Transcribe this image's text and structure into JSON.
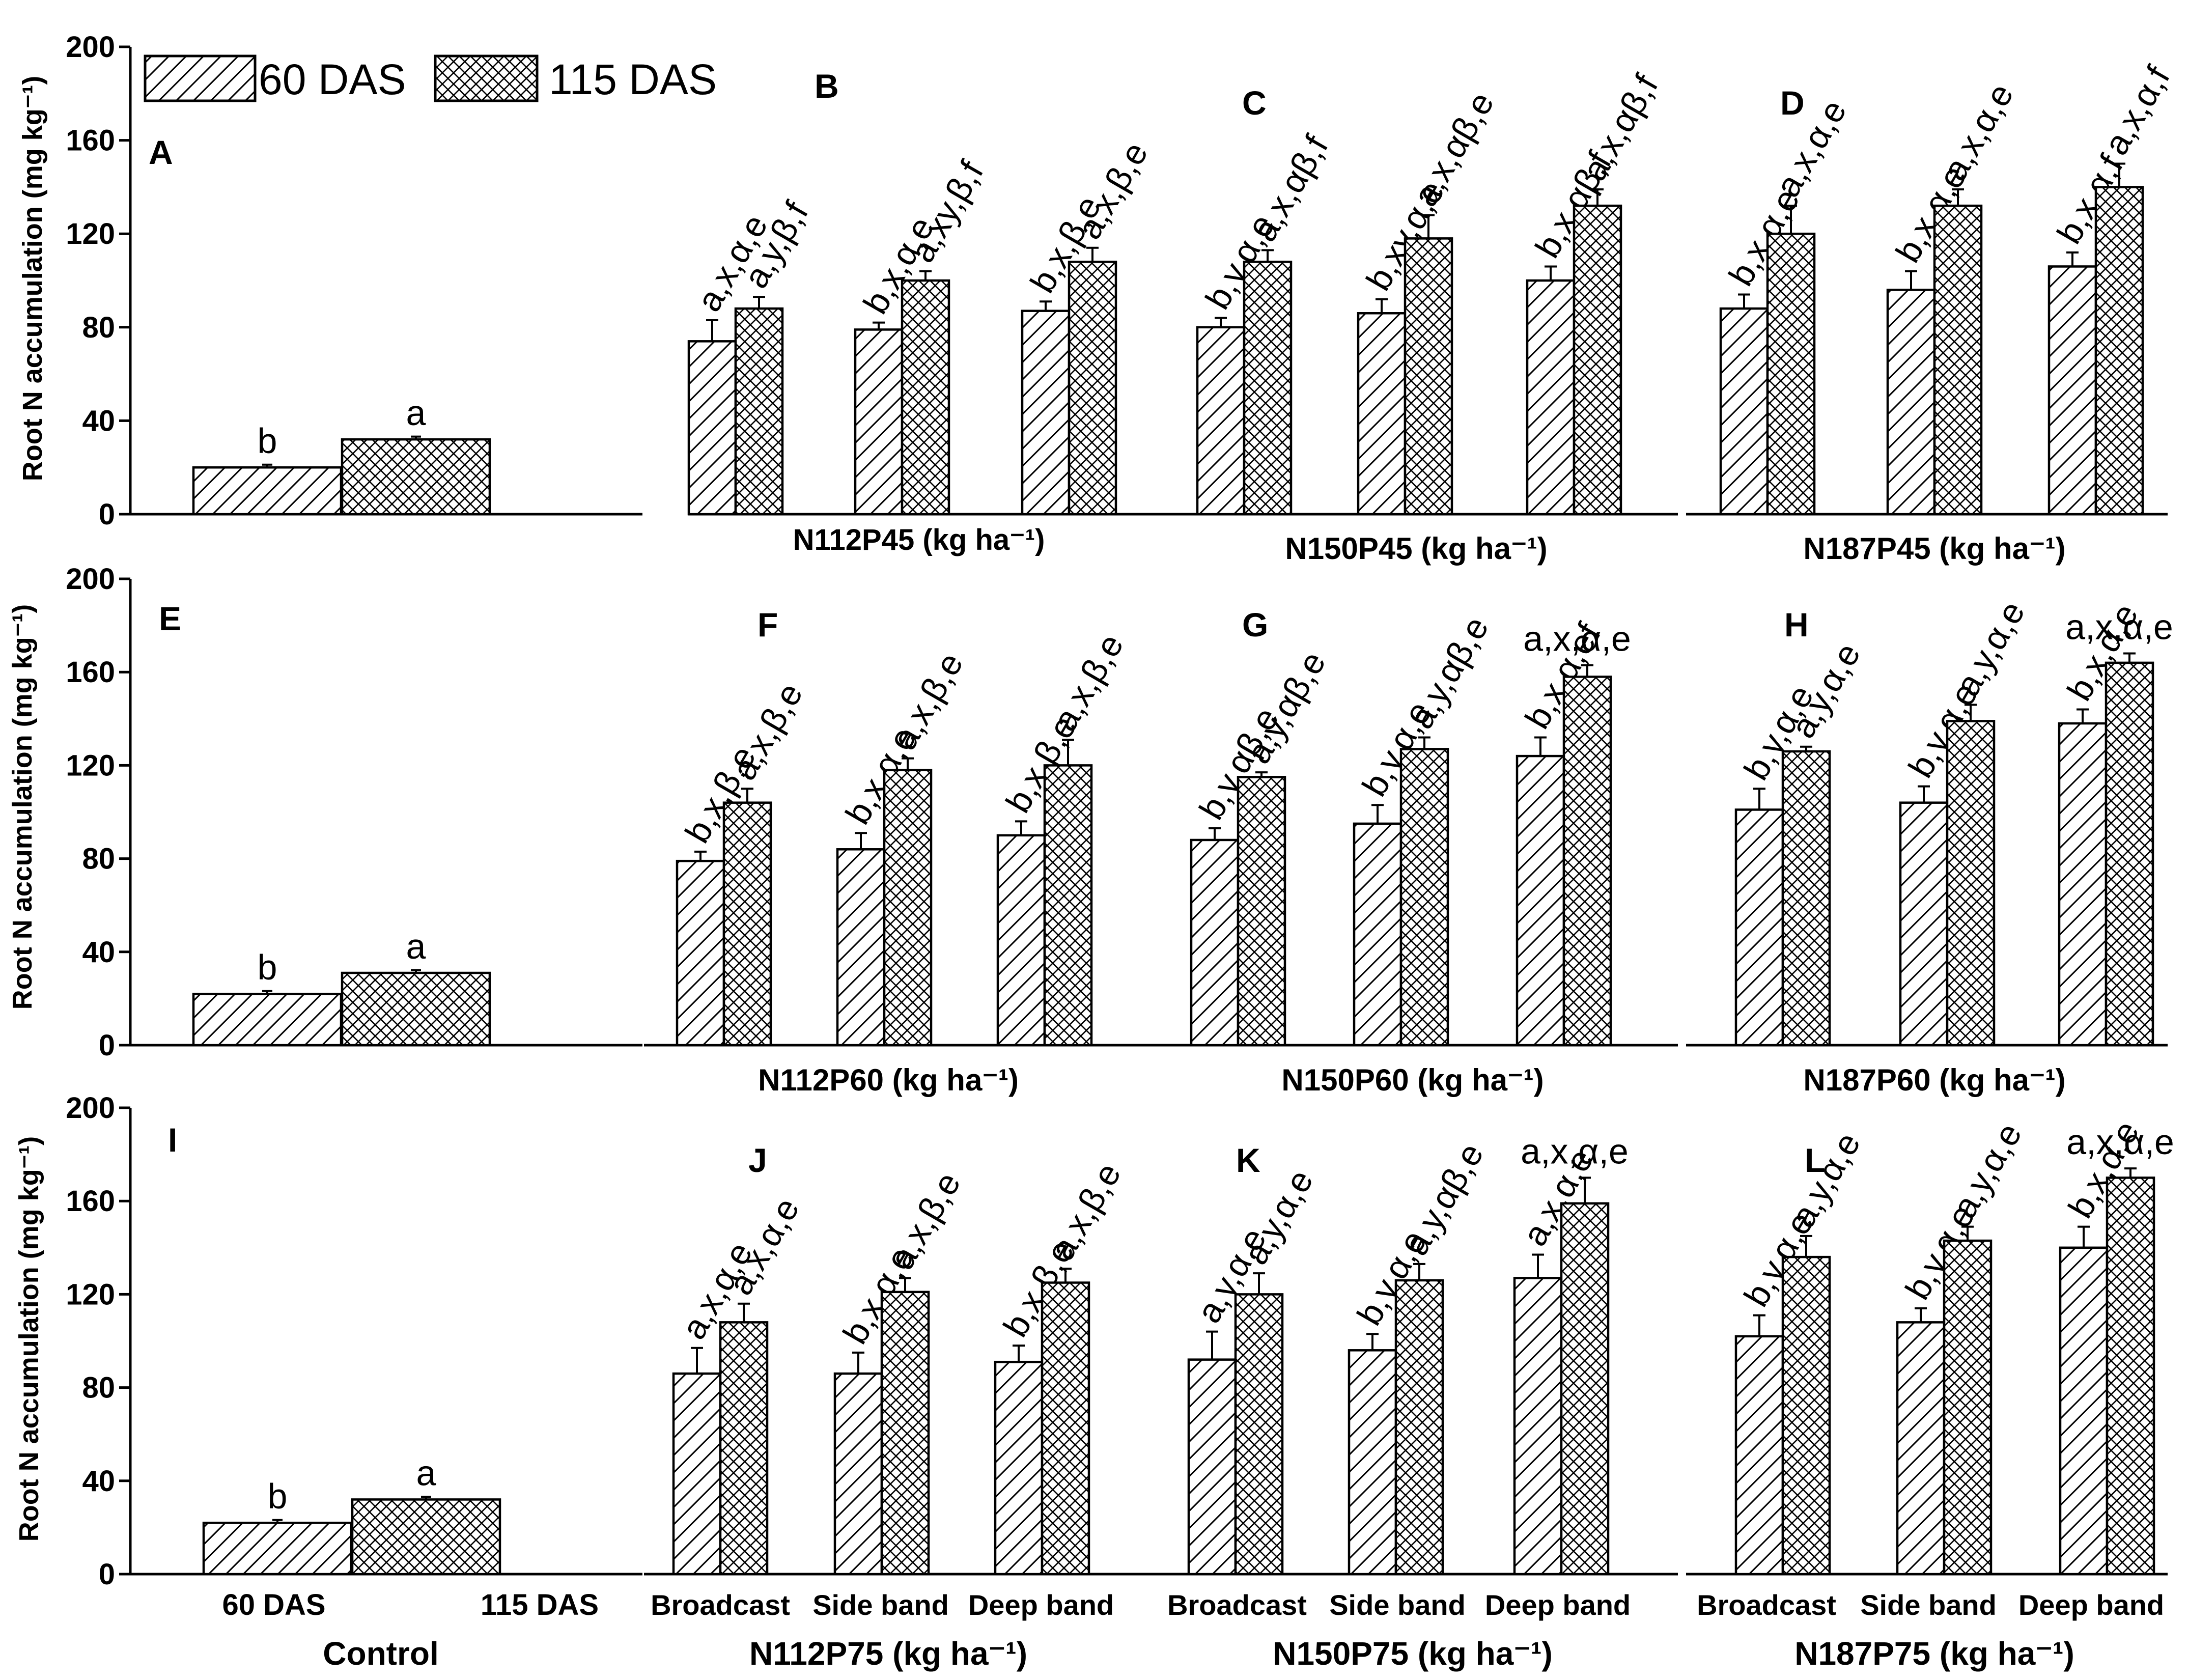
{
  "legend": {
    "series_60": "60 DAS",
    "series_115": "115 DAS"
  },
  "y_axis": {
    "label": "Root N accumulation (mg kg⁻¹)",
    "ticks": [
      0,
      40,
      80,
      120,
      160,
      200
    ]
  },
  "x_labels": {
    "methods": [
      "Broadcast",
      "Side band",
      "Deep band"
    ],
    "control_categories": [
      "60 DAS",
      "115 DAS"
    ],
    "control_title": "Control",
    "group_titles": {
      "N112P45": "N112P45 (kg ha⁻¹)",
      "N150P45": "N150P45 (kg ha⁻¹)",
      "N187P45": "N187P45 (kg ha⁻¹)",
      "N112P60": "N112P60 (kg ha⁻¹)",
      "N150P60": "N150P60 (kg ha⁻¹)",
      "N187P60": "N187P60 (kg ha⁻¹)",
      "N112P75": "N112P75 (kg ha⁻¹)",
      "N150P75": "N150P75 (kg ha⁻¹)",
      "N187P75": "N187P75 (kg ha⁻¹)"
    }
  },
  "chart_data": [
    {
      "panel": "A",
      "type": "bar",
      "group": "Control",
      "categories": [
        "60 DAS",
        "115 DAS"
      ],
      "series": [
        {
          "name": "60 DAS",
          "values": [
            20,
            null
          ]
        },
        {
          "name": "115 DAS",
          "values": [
            null,
            32
          ]
        }
      ],
      "errors": [
        1.2,
        1.2
      ],
      "labels": [
        "b",
        "a"
      ],
      "ylim": [
        0,
        200
      ]
    },
    {
      "panel": "B",
      "type": "bar",
      "group": "N112P45",
      "categories": [
        "Broadcast",
        "Side band",
        "Deep band"
      ],
      "series": [
        {
          "name": "60 DAS",
          "values": [
            74,
            79,
            87
          ],
          "errors": [
            9,
            3,
            4
          ],
          "labels": [
            "a,x,α,e",
            "b,x,α,e",
            "b,x,β,e"
          ]
        },
        {
          "name": "115 DAS",
          "values": [
            88,
            100,
            108
          ],
          "errors": [
            5,
            4,
            6
          ],
          "labels": [
            "a,y,β,f",
            "a,xy,β,f",
            "a,x,β,e"
          ]
        }
      ],
      "ylim": [
        0,
        200
      ]
    },
    {
      "panel": "C",
      "type": "bar",
      "group": "N150P45",
      "categories": [
        "Broadcast",
        "Side band",
        "Deep band"
      ],
      "series": [
        {
          "name": "60 DAS",
          "values": [
            80,
            86,
            100
          ],
          "errors": [
            4,
            6,
            6
          ]
        },
        {
          "name": "115 DAS",
          "values": [
            108,
            118,
            132
          ],
          "errors": [
            5,
            10,
            7
          ]
        }
      ],
      "ylim": [
        0,
        200
      ]
    },
    {
      "panel": "D",
      "type": "bar",
      "group": "N187P45",
      "categories": [
        "Broadcast",
        "Side band",
        "Deep band"
      ],
      "series": [
        {
          "name": "60 DAS",
          "values": [
            88,
            96,
            106
          ],
          "errors": [
            6,
            8,
            6
          ]
        },
        {
          "name": "115 DAS",
          "values": [
            120,
            132,
            140
          ],
          "errors": [
            12,
            7,
            10
          ]
        }
      ],
      "ylim": [
        0,
        200
      ]
    },
    {
      "panel": "E",
      "type": "bar",
      "group": "Control",
      "categories": [
        "60 DAS",
        "115 DAS"
      ],
      "series": [
        {
          "name": "60 DAS",
          "values": [
            22,
            null
          ]
        },
        {
          "name": "115 DAS",
          "values": [
            null,
            31
          ]
        }
      ],
      "errors": [
        1.2,
        1.2
      ],
      "labels": [
        "b",
        "a"
      ],
      "ylim": [
        0,
        200
      ]
    },
    {
      "panel": "F",
      "type": "bar",
      "group": "N112P60",
      "categories": [
        "Broadcast",
        "Side band",
        "Deep band"
      ],
      "series": [
        {
          "name": "60 DAS",
          "values": [
            79,
            84,
            90
          ],
          "errors": [
            4,
            7,
            6
          ]
        },
        {
          "name": "115 DAS",
          "values": [
            104,
            118,
            120
          ],
          "errors": [
            6,
            5,
            11
          ]
        }
      ],
      "ylim": [
        0,
        200
      ]
    },
    {
      "panel": "G",
      "type": "bar",
      "group": "N150P60",
      "categories": [
        "Broadcast",
        "Side band",
        "Deep band"
      ],
      "series": [
        {
          "name": "60 DAS",
          "values": [
            88,
            95,
            124
          ],
          "errors": [
            5,
            8,
            8
          ]
        },
        {
          "name": "115 DAS",
          "values": [
            115,
            127,
            158
          ],
          "errors": [
            2,
            5,
            5
          ]
        }
      ],
      "ylim": [
        0,
        200
      ]
    },
    {
      "panel": "H",
      "type": "bar",
      "group": "N187P60",
      "categories": [
        "Broadcast",
        "Side band",
        "Deep band"
      ],
      "series": [
        {
          "name": "60 DAS",
          "values": [
            101,
            104,
            138
          ],
          "errors": [
            9,
            7,
            6
          ]
        },
        {
          "name": "115 DAS",
          "values": [
            126,
            139,
            164
          ],
          "errors": [
            2,
            7,
            4
          ]
        }
      ],
      "ylim": [
        0,
        200
      ]
    },
    {
      "panel": "I",
      "type": "bar",
      "group": "Control",
      "categories": [
        "60 DAS",
        "115 DAS"
      ],
      "series": [
        {
          "name": "60 DAS",
          "values": [
            22,
            null
          ]
        },
        {
          "name": "115 DAS",
          "values": [
            null,
            32
          ]
        }
      ],
      "errors": [
        1.2,
        1.2
      ],
      "labels": [
        "b",
        "a"
      ],
      "ylim": [
        0,
        200
      ]
    },
    {
      "panel": "J",
      "type": "bar",
      "group": "N112P75",
      "categories": [
        "Broadcast",
        "Side band",
        "Deep band"
      ],
      "series": [
        {
          "name": "60 DAS",
          "values": [
            86,
            86,
            91
          ],
          "errors": [
            11,
            9,
            7
          ]
        },
        {
          "name": "115 DAS",
          "values": [
            108,
            121,
            125
          ],
          "errors": [
            8,
            6,
            6
          ]
        }
      ],
      "ylim": [
        0,
        200
      ]
    },
    {
      "panel": "K",
      "type": "bar",
      "group": "N150P75",
      "categories": [
        "Broadcast",
        "Side band",
        "Deep band"
      ],
      "series": [
        {
          "name": "60 DAS",
          "values": [
            92,
            96,
            127
          ],
          "errors": [
            12,
            7,
            10
          ]
        },
        {
          "name": "115 DAS",
          "values": [
            120,
            126,
            159
          ],
          "errors": [
            9,
            7,
            11
          ]
        }
      ],
      "ylim": [
        0,
        200
      ]
    },
    {
      "panel": "L",
      "type": "bar",
      "group": "N187P75",
      "categories": [
        "Broadcast",
        "Side band",
        "Deep band"
      ],
      "series": [
        {
          "name": "60 DAS",
          "values": [
            102,
            108,
            140
          ],
          "errors": [
            9,
            6,
            9
          ]
        },
        {
          "name": "115 DAS",
          "values": [
            136,
            143,
            170
          ],
          "errors": [
            9,
            6,
            4
          ]
        }
      ],
      "ylim": [
        0,
        200
      ]
    }
  ],
  "annotations": {
    "B": [
      "a,x,α,e",
      "a,y,β,f",
      "b,x,α,e",
      "a,xy,β,f",
      "b,x,β,e",
      "a,x,β,e"
    ],
    "C": [
      "b,y,α,e",
      "a,x,αβ,f",
      "b,xy,α,e",
      "a,x,αβ,e",
      "b,x,αβ,f",
      "a,x,αβ,f"
    ],
    "D": [
      "b,x,α,e",
      "a,x,α,e",
      "b,x,α,e",
      "a,x,α,e",
      "b,x,α,f",
      "a,x,α,f"
    ],
    "F": [
      "b,x,β,e",
      "a,x,β,e",
      "b,x,α,e",
      "a,x,β,e",
      "b,x,β,e",
      "a,x,β,e"
    ],
    "G": [
      "b,y,αβ,e",
      "a,y,αβ,e",
      "b,y,α,e",
      "a,y,αβ,e",
      "b,x,α,ef",
      "a,x,α,e"
    ],
    "H": [
      "b,y,α,e",
      "a,y,α,e",
      "b,y,α,e",
      "a,y,α,e",
      "b,x,α,e",
      "a,x,α,e"
    ],
    "J": [
      "a,x,α,e",
      "a,x,α,e",
      "b,x,α,e",
      "a,x,β,e",
      "b,x,β,e",
      "a,x,β,e"
    ],
    "K": [
      "a,y,α,e",
      "a,y,α,e",
      "b,y,α,e",
      "a,y,αβ,e",
      "a,x,α,e",
      "a,x,α,e"
    ],
    "L": [
      "b,y,α,e",
      "a,y,α,e",
      "b,y,α,e",
      "a,y,α,e",
      "b,x,α,e",
      "a,x,α,e"
    ]
  }
}
